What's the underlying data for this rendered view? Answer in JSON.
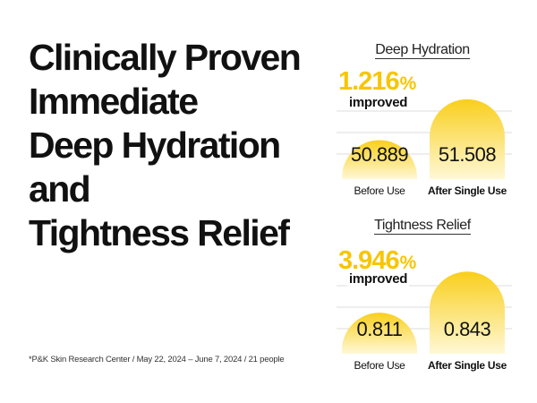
{
  "headline": [
    "Clinically Proven",
    "Immediate",
    "Deep Hydration",
    "and",
    "Tightness Relief"
  ],
  "footnote": "*P&K Skin Research Center / May 22, 2024 – June 7, 2024 / 21 people",
  "colors": {
    "accent": "#f7c600",
    "bar_top": "#f9cf1c",
    "bar_bottom": "#fff8d6",
    "grid": "#dcdcdc"
  },
  "chart_data": [
    {
      "type": "bar",
      "title": "Deep Hydration",
      "improvement_value": "1.216",
      "improvement_unit": "%",
      "improvement_label": "improved",
      "categories": [
        "Before Use",
        "After Single Use"
      ],
      "values": [
        50.889,
        51.508
      ],
      "value_labels": [
        "50.889",
        "51.508"
      ],
      "ylim": [
        50.3,
        51.6
      ]
    },
    {
      "type": "bar",
      "title": "Tightness Relief",
      "improvement_value": "3.946",
      "improvement_unit": "%",
      "improvement_label": "improved",
      "categories": [
        "Before Use",
        "After Single Use"
      ],
      "values": [
        0.811,
        0.843
      ],
      "value_labels": [
        "0.811",
        "0.843"
      ],
      "ylim": [
        0.779,
        0.846
      ]
    }
  ]
}
